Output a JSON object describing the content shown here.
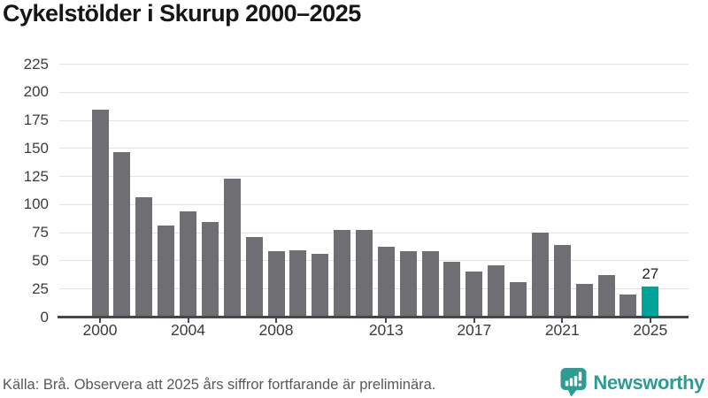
{
  "header": {
    "title": "Cykelstölder i Skurup 2000–2025"
  },
  "chart_data": {
    "type": "bar",
    "title": "Cykelstölder i Skurup 2000–2025",
    "x": [
      2000,
      2001,
      2002,
      2003,
      2004,
      2005,
      2006,
      2007,
      2008,
      2009,
      2010,
      2011,
      2012,
      2013,
      2014,
      2015,
      2016,
      2017,
      2018,
      2019,
      2020,
      2021,
      2022,
      2023,
      2024,
      2025
    ],
    "values": [
      184,
      146,
      106,
      81,
      94,
      84,
      123,
      71,
      58,
      59,
      56,
      77,
      77,
      62,
      58,
      58,
      49,
      40,
      46,
      31,
      75,
      64,
      29,
      37,
      20,
      27
    ],
    "ylim": [
      0,
      225
    ],
    "yticks": [
      0,
      25,
      50,
      75,
      100,
      125,
      150,
      175,
      200,
      225
    ],
    "xtick_years": [
      2000,
      2004,
      2008,
      2013,
      2017,
      2021,
      2025
    ],
    "grid": true,
    "legend": "none",
    "colors": {
      "bar": "#6E6E73",
      "highlight": "#00A398",
      "grid": "#E3E3E3",
      "axis": "#47474A",
      "tick_text": "#3C3C3C"
    },
    "highlight": {
      "year": 2025,
      "value": 27,
      "label": "27"
    }
  },
  "footer": {
    "source": "Källa: Brå. Observera att 2025 års siffror fortfarande är preliminära.",
    "brand": {
      "name": "Newsworthy",
      "color": "#2E9C95",
      "icon": "newsworthy-chart-bubble-icon"
    }
  }
}
